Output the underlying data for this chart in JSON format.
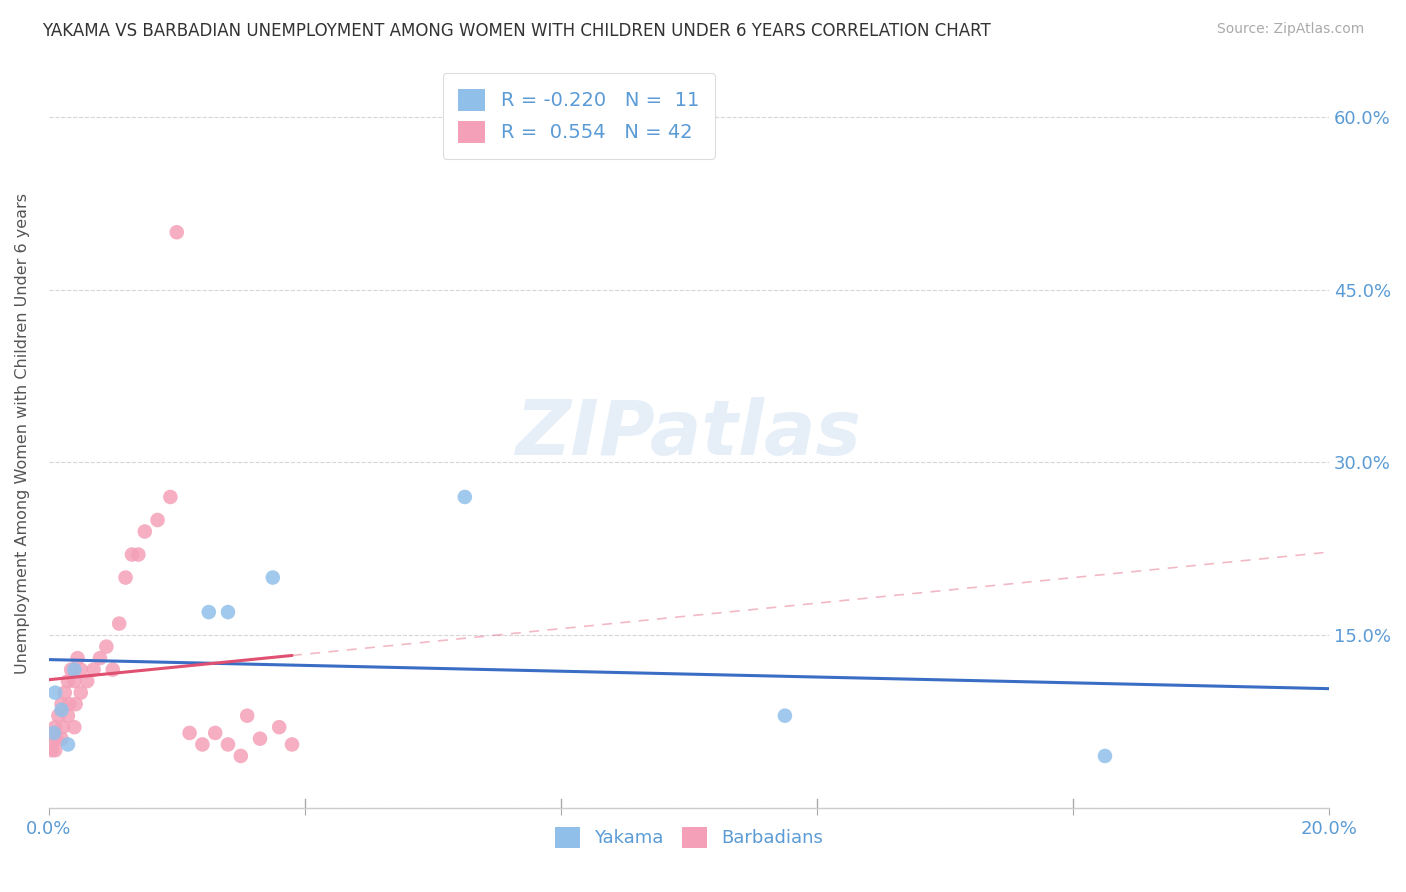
{
  "title": "YAKAMA VS BARBADIAN UNEMPLOYMENT AMONG WOMEN WITH CHILDREN UNDER 6 YEARS CORRELATION CHART",
  "source": "Source: ZipAtlas.com",
  "ylabel": "Unemployment Among Women with Children Under 6 years",
  "watermark": "ZIPatlas",
  "xlim": [
    0.0,
    0.2
  ],
  "ylim": [
    0.0,
    0.65
  ],
  "legend_r_yakama": "-0.220",
  "legend_n_yakama": "11",
  "legend_r_barbadian": "0.554",
  "legend_n_barbadian": "42",
  "yakama_color": "#90C0EA",
  "barbadian_color": "#F4A0B8",
  "trendline_yakama_color": "#3A6EC4",
  "trendline_barbadian_color": "#E05070",
  "grid_color": "#CCCCCC",
  "background_color": "#FFFFFF",
  "title_color": "#333333",
  "axis_label_color": "#5B9BD5",
  "legend_text_color": "#5B9BD5",
  "yakama_x": [
    0.0008,
    0.001,
    0.002,
    0.003,
    0.004,
    0.025,
    0.028,
    0.035,
    0.065,
    0.115,
    0.165
  ],
  "yakama_y": [
    0.065,
    0.1,
    0.085,
    0.055,
    0.12,
    0.17,
    0.17,
    0.2,
    0.27,
    0.08,
    0.045
  ],
  "barbadian_x": [
    0.0005,
    0.0007,
    0.001,
    0.001,
    0.0012,
    0.0015,
    0.002,
    0.002,
    0.0022,
    0.0025,
    0.003,
    0.003,
    0.0032,
    0.0035,
    0.004,
    0.004,
    0.0042,
    0.0045,
    0.005,
    0.005,
    0.006,
    0.007,
    0.008,
    0.009,
    0.01,
    0.011,
    0.012,
    0.013,
    0.014,
    0.015,
    0.017,
    0.019,
    0.02,
    0.022,
    0.024,
    0.026,
    0.028,
    0.03,
    0.031,
    0.033,
    0.036,
    0.038
  ],
  "barbadian_y": [
    0.05,
    0.06,
    0.05,
    0.07,
    0.06,
    0.08,
    0.06,
    0.09,
    0.07,
    0.1,
    0.08,
    0.11,
    0.09,
    0.12,
    0.07,
    0.11,
    0.09,
    0.13,
    0.1,
    0.12,
    0.11,
    0.12,
    0.13,
    0.14,
    0.12,
    0.16,
    0.2,
    0.22,
    0.22,
    0.24,
    0.25,
    0.27,
    0.5,
    0.065,
    0.055,
    0.065,
    0.055,
    0.045,
    0.08,
    0.06,
    0.07,
    0.055
  ]
}
